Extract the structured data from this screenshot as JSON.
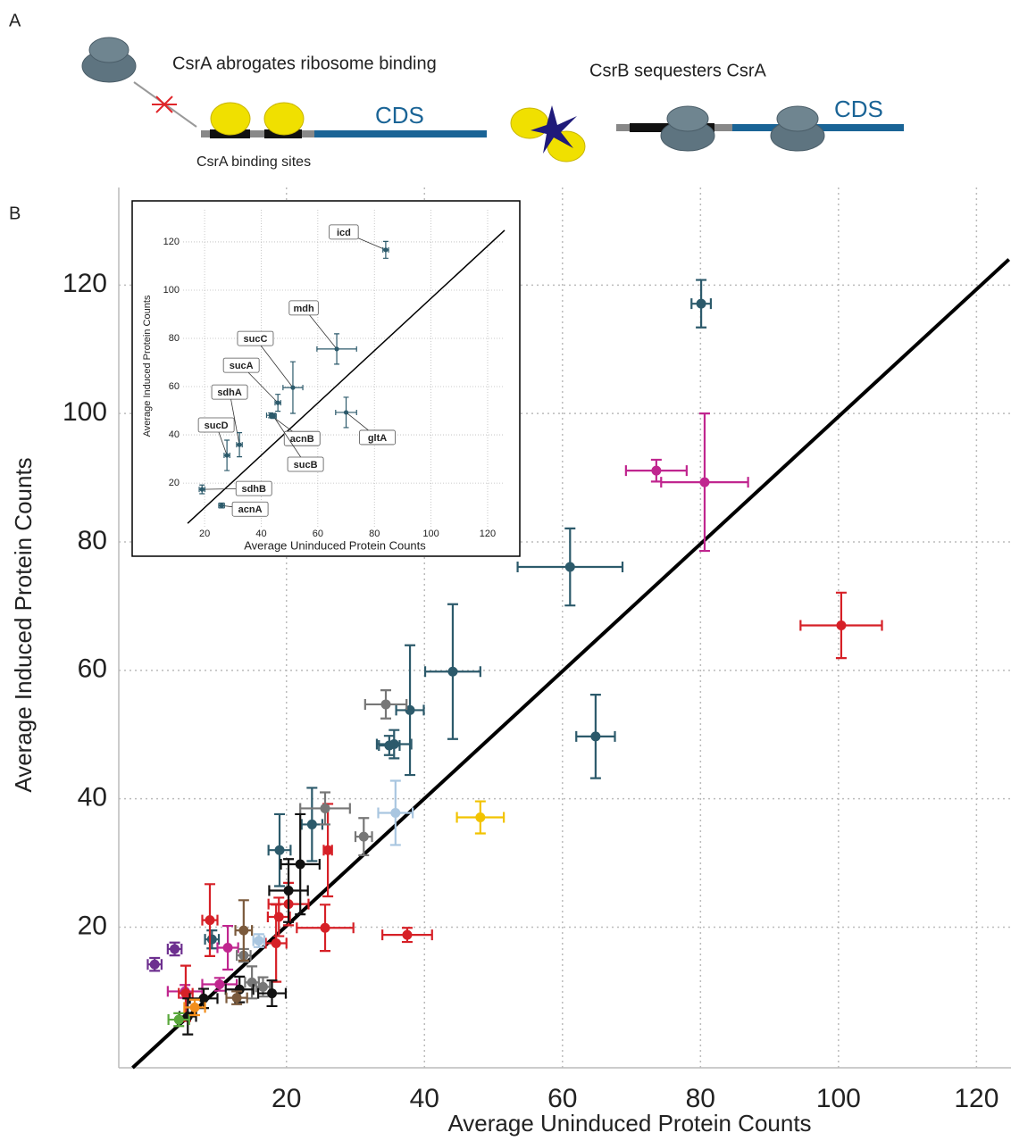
{
  "panel_a": {
    "label": "A",
    "left_caption": "CsrA abrogates ribosome binding",
    "left_cds": "CDS",
    "binding_sites": "CsrA binding sites",
    "right_caption": "CsrB sequesters CsrA",
    "right_cds": "CDS"
  },
  "chart_data": [
    {
      "type": "scatter",
      "panel_label": "B",
      "xlabel": "Average Uninduced Protein Counts",
      "ylabel": "Average Induced Protein Counts",
      "xlim": [
        -4.3,
        125
      ],
      "ylim": [
        -1.9,
        135.2
      ],
      "xticks": [
        20,
        40,
        60,
        80,
        100,
        120
      ],
      "yticks": [
        20,
        40,
        60,
        80,
        100,
        120
      ],
      "grid": true,
      "series": [
        {
          "color": "#2c5a6b",
          "x": [
            80.1,
            61.1,
            44.1,
            37.9,
            64.8,
            35.6,
            34.9,
            23.7,
            19.0,
            9.2
          ],
          "values": [
            117.1,
            76.1,
            59.8,
            53.8,
            49.7,
            48.5,
            48.3,
            36.0,
            32.0,
            18.1
          ],
          "xerr": [
            1.4,
            7.6,
            4.0,
            2.0,
            2.8,
            2.5,
            1.5,
            1.5,
            1.6,
            1.0
          ],
          "yerr": [
            3.7,
            6.0,
            10.5,
            10.1,
            6.5,
            2.2,
            1.5,
            5.7,
            5.6,
            1.4
          ]
        },
        {
          "color": "#c0268f",
          "x": [
            73.6,
            80.6,
            11.5,
            5.3,
            10.3
          ],
          "values": [
            91.1,
            89.3,
            16.8,
            10.0,
            11.1
          ],
          "xerr": [
            4.4,
            6.3,
            1.5,
            2.5,
            2.5
          ],
          "yerr": [
            1.7,
            10.7,
            3.4,
            1.0,
            1.0
          ]
        },
        {
          "color": "#d62027",
          "x": [
            100.4,
            26.0,
            20.3,
            25.6,
            18.9,
            18.5,
            37.5,
            8.9,
            5.4
          ],
          "values": [
            67.0,
            32.0,
            23.6,
            19.9,
            21.6,
            17.5,
            18.8,
            21.1,
            9.7
          ],
          "xerr": [
            5.9,
            0.6,
            2.9,
            4.1,
            1.6,
            1.5,
            3.6,
            1.1,
            1.0
          ],
          "yerr": [
            5.1,
            7.2,
            3.3,
            3.6,
            3.0,
            6.0,
            1.1,
            5.6,
            4.3
          ]
        },
        {
          "color": "#777777",
          "x": [
            34.4,
            25.6,
            31.2,
            13.8,
            15.0,
            16.6
          ],
          "values": [
            54.7,
            38.5,
            34.1,
            15.6,
            11.4,
            10.7
          ],
          "xerr": [
            3.0,
            3.6,
            1.2,
            1.0,
            1.0,
            1.0
          ],
          "yerr": [
            2.2,
            2.5,
            2.9,
            1.0,
            2.5,
            1.5
          ]
        },
        {
          "color": "#a9c6e0",
          "x": [
            35.8,
            16.0
          ],
          "values": [
            37.8,
            17.9
          ],
          "xerr": [
            2.5,
            0.8
          ],
          "yerr": [
            5.0,
            1.0
          ]
        },
        {
          "color": "#f2c300",
          "x": [
            48.1
          ],
          "values": [
            37.1
          ],
          "xerr": [
            3.4
          ],
          "yerr": [
            2.5
          ]
        },
        {
          "color": "#111111",
          "x": [
            22.0,
            20.3,
            5.7,
            8.0,
            13.2,
            17.9
          ],
          "values": [
            29.8,
            25.7,
            6.1,
            8.9,
            10.3,
            9.7
          ],
          "xerr": [
            2.8,
            2.8,
            1.2,
            2.0,
            2.0,
            2.0
          ],
          "yerr": [
            7.8,
            4.9,
            2.8,
            1.5,
            2.0,
            2.0
          ]
        },
        {
          "color": "#7b5a3c",
          "x": [
            13.8,
            12.8
          ],
          "values": [
            19.5,
            9.0
          ],
          "xerr": [
            1.2,
            1.5
          ],
          "yerr": [
            4.7,
            1.0
          ]
        },
        {
          "color": "#6d2f8f",
          "x": [
            0.9,
            3.8
          ],
          "values": [
            14.2,
            16.6
          ],
          "xerr": [
            1.0,
            1.0
          ],
          "yerr": [
            1.0,
            1.0
          ]
        },
        {
          "color": "#5aa83c",
          "x": [
            4.4
          ],
          "values": [
            5.6
          ],
          "xerr": [
            1.5
          ],
          "yerr": [
            1.0
          ]
        },
        {
          "color": "#f28e1c",
          "x": [
            6.7
          ],
          "values": [
            7.5
          ],
          "xerr": [
            1.5
          ],
          "yerr": [
            1.2
          ]
        }
      ],
      "lines": [
        {
          "color": "#000000",
          "x": [
            -2.3,
            124.7
          ],
          "y": [
            -1.9,
            124
          ]
        }
      ]
    },
    {
      "type": "scatter",
      "xlabel": "Average Uninduced Protein Counts",
      "ylabel": "Average Induced Protein Counts",
      "xlim": [
        12.4,
        126
      ],
      "ylim": [
        1.9,
        133.3
      ],
      "xticks": [
        20,
        40,
        60,
        80,
        100,
        120
      ],
      "yticks": [
        20,
        40,
        60,
        80,
        100,
        120
      ],
      "grid": true,
      "series": [
        {
          "color": "#2c5a6b",
          "labels": [
            "icd",
            "mdh",
            "sucC",
            "sucA",
            "gltA",
            "acnB",
            "sucB",
            "sdhA",
            "sucD",
            "sdhB",
            "acnA"
          ],
          "x": [
            84.0,
            66.7,
            51.2,
            45.9,
            70.0,
            43.4,
            44.3,
            32.3,
            27.9,
            19.1,
            26.0
          ],
          "values": [
            116.7,
            75.6,
            59.6,
            53.3,
            49.3,
            48.1,
            47.8,
            35.9,
            31.5,
            17.4,
            10.7
          ],
          "xerr": [
            1.0,
            7.0,
            3.5,
            1.0,
            3.7,
            1.5,
            1.0,
            1.0,
            1.0,
            1.0,
            1.0
          ],
          "yerr": [
            3.5,
            6.3,
            10.7,
            3.5,
            6.3,
            1.0,
            1.0,
            5.0,
            6.3,
            1.8,
            1.0
          ]
        }
      ],
      "lines": [
        {
          "color": "#000000",
          "x": [
            14,
            126
          ],
          "y": [
            3.3,
            124.8
          ]
        }
      ]
    }
  ]
}
